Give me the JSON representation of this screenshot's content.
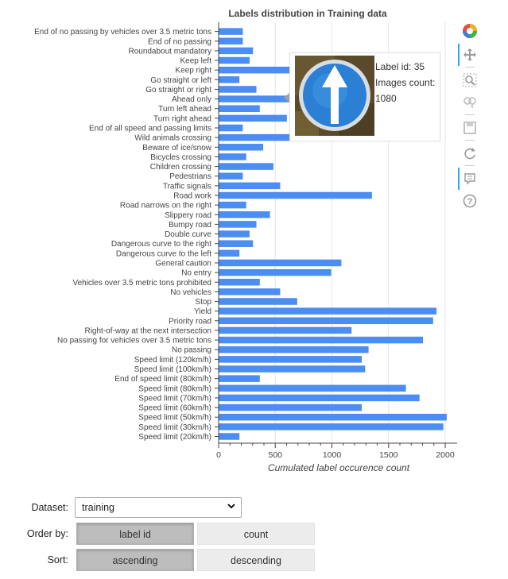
{
  "chart_data": {
    "type": "bar",
    "orientation": "horizontal",
    "title": "Labels distribution in Training data",
    "xlabel": "Cumulated label occurence count",
    "ylabel": "",
    "xlim": [
      0,
      2080
    ],
    "xticks": [
      0,
      500,
      1000,
      1500,
      2000
    ],
    "grid": true,
    "bar_color": "#4b8df2",
    "categories": [
      "Speed limit (20km/h)",
      "Speed limit (30km/h)",
      "Speed limit (50km/h)",
      "Speed limit (60km/h)",
      "Speed limit (70km/h)",
      "Speed limit (80km/h)",
      "End of speed limit (80km/h)",
      "Speed limit (100km/h)",
      "Speed limit (120km/h)",
      "No passing",
      "No passing for vehicles over 3.5 metric tons",
      "Right-of-way at the next intersection",
      "Priority road",
      "Yield",
      "Stop",
      "No vehicles",
      "Vehicles over 3.5 metric tons prohibited",
      "No entry",
      "General caution",
      "Dangerous curve to the left",
      "Dangerous curve to the right",
      "Double curve",
      "Bumpy road",
      "Slippery road",
      "Road narrows on the right",
      "Road work",
      "Traffic signals",
      "Pedestrians",
      "Children crossing",
      "Bicycles crossing",
      "Beware of ice/snow",
      "Wild animals crossing",
      "End of all speed and passing limits",
      "Turn right ahead",
      "Turn left ahead",
      "Ahead only",
      "Go straight or right",
      "Go straight or left",
      "Keep right",
      "Keep left",
      "Roundabout mandatory",
      "End of no passing",
      "End of no passing by vehicles over 3.5 metric tons"
    ],
    "values": [
      180,
      1980,
      2010,
      1260,
      1770,
      1650,
      360,
      1290,
      1260,
      1320,
      1800,
      1170,
      1890,
      1920,
      690,
      540,
      360,
      990,
      1080,
      180,
      300,
      270,
      330,
      450,
      240,
      1350,
      540,
      210,
      480,
      240,
      390,
      690,
      210,
      599,
      360,
      1080,
      330,
      180,
      1860,
      270,
      300,
      210,
      210
    ]
  },
  "tooltip": {
    "label_id_text": "Label id: 35",
    "images_count_label": "Images count:",
    "images_count_value": "1080"
  },
  "toolbar": {
    "icons": [
      "bokeh-logo-icon",
      "pan-icon",
      "box-zoom-icon",
      "wheel-zoom-icon",
      "save-icon",
      "reset-icon",
      "hover-icon",
      "help-icon"
    ]
  },
  "controls": {
    "dataset_label": "Dataset:",
    "dataset_value": "training",
    "order_label": "Order by:",
    "order_options": [
      "label id",
      "count"
    ],
    "order_selected": "label id",
    "sort_label": "Sort:",
    "sort_options": [
      "ascending",
      "descending"
    ],
    "sort_selected": "ascending"
  }
}
